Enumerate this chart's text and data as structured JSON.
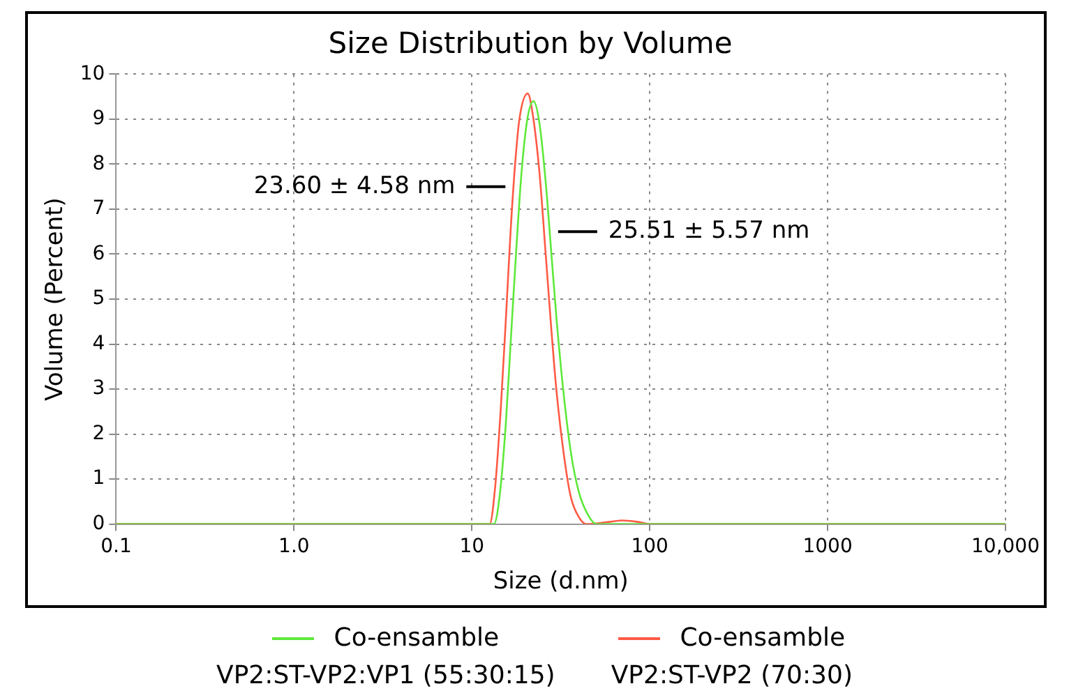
{
  "chart_data": {
    "type": "line",
    "title": "Size Distribution by Volume",
    "xlabel": "Size (d.nm)",
    "ylabel": "Volume (Percent)",
    "log": "x",
    "xlim": [
      0.1,
      10000
    ],
    "xticks": [
      {
        "value": 0.1,
        "label": "0.1"
      },
      {
        "value": 1,
        "label": "1.0"
      },
      10,
      100,
      1000,
      {
        "value": 10000,
        "label": "10,000"
      }
    ],
    "ylim": [
      0,
      10
    ],
    "yticks": [
      0,
      1,
      2,
      3,
      4,
      5,
      6,
      7,
      8,
      9,
      10
    ],
    "grid": true,
    "legend": "bottom",
    "marker": "none",
    "line_style": "solid",
    "series": [
      {
        "name": "Co-ensamble VP2:ST-VP2:VP1 (55:30:15)",
        "color": "#5ee83a",
        "x": [
          0.1,
          10,
          13.3,
          14.3,
          15.5,
          16.5,
          17.7,
          19,
          20.5,
          22.2,
          24,
          26,
          28,
          30,
          33,
          36,
          40,
          45,
          50,
          100,
          10000
        ],
        "values": [
          0,
          0,
          0,
          0.6,
          2.2,
          4.0,
          6.0,
          7.8,
          9.0,
          9.4,
          8.9,
          7.6,
          6.0,
          4.5,
          2.8,
          1.6,
          0.7,
          0.2,
          0,
          0,
          0
        ]
      },
      {
        "name": "Co-ensamble VP2:ST-VP2 (70:30)",
        "color": "#ff5a45",
        "x": [
          0.1,
          10,
          12.6,
          13.5,
          14.5,
          15.5,
          16.5,
          17.5,
          18.5,
          20.6,
          22,
          24,
          26,
          28,
          30,
          33,
          36,
          40,
          44,
          60,
          70,
          85,
          100,
          10000
        ],
        "values": [
          0,
          0,
          0,
          0.8,
          2.5,
          4.5,
          6.5,
          8.0,
          9.0,
          9.57,
          9.1,
          7.8,
          6.0,
          4.3,
          2.9,
          1.5,
          0.6,
          0.15,
          0,
          0.05,
          0.08,
          0.05,
          0,
          0
        ]
      }
    ],
    "annotations": [
      {
        "text": "23.60 ± 4.58 nm",
        "x": 17.2,
        "y": 7.5
      },
      {
        "text": "25.51 ± 5.57 nm",
        "x": 27.4,
        "y": 6.5
      }
    ]
  }
}
